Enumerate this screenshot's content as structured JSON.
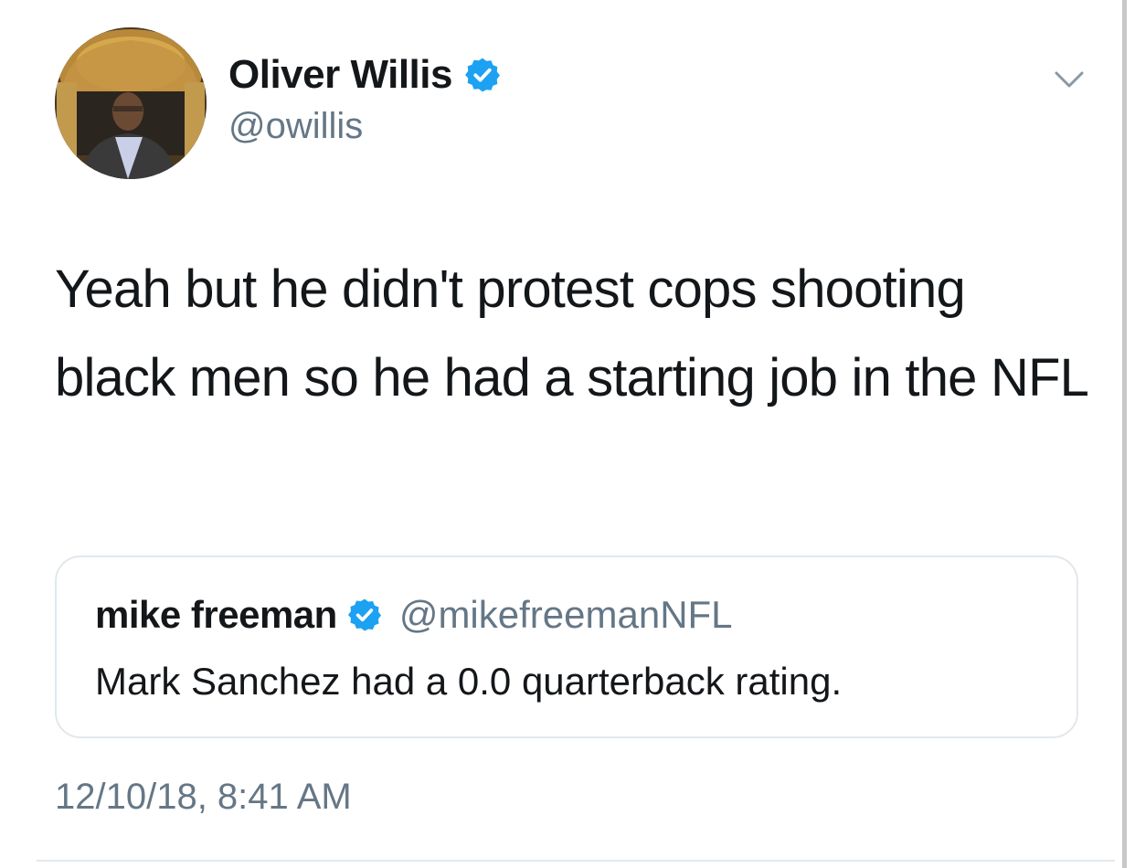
{
  "author": {
    "display_name": "Oliver Willis",
    "handle": "@owillis",
    "verified": true,
    "avatar": "profile-photo"
  },
  "tweet": {
    "text": "Yeah but he didn't protest cops shooting black men so he had a starting job in the NFL",
    "timestamp": "12/10/18, 8:41 AM"
  },
  "quoted_tweet": {
    "display_name": "mike freeman",
    "handle": "@mikefreemanNFL",
    "verified": true,
    "text": "Mark Sanchez had a 0.0 quarterback rating."
  },
  "icons": {
    "verified": "verified-badge-icon",
    "menu": "chevron-down-icon"
  },
  "colors": {
    "verified_blue": "#1da1f2",
    "secondary_text": "#657786",
    "primary_text": "#14171a",
    "border": "#e1e8ed"
  }
}
